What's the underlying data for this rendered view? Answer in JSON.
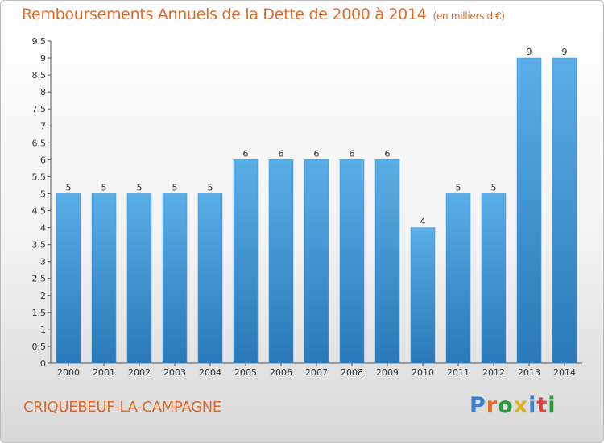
{
  "header": {
    "title": "Remboursements Annuels de la Dette de 2000 à 2014",
    "subtitle": "(en milliers d'€)"
  },
  "footer": {
    "commune": "CRIQUEBEUF-LA-CAMPAGNE",
    "logo_text": "Proxiti"
  },
  "colors": {
    "title": "#e06a2a",
    "bar_top": "#5aaee6",
    "bar_bottom": "#2a78b8",
    "logo_letters": [
      "#3a7fd0",
      "#e06a2a",
      "#2a9a3a",
      "#e0b020",
      "#3a7fd0",
      "#e04040",
      "#2a9a3a"
    ]
  },
  "chart_data": {
    "type": "bar",
    "title": "Remboursements Annuels de la Dette de 2000 à 2014",
    "subtitle": "(en milliers d'€)",
    "xlabel": "",
    "ylabel": "",
    "categories": [
      "2000",
      "2001",
      "2002",
      "2003",
      "2004",
      "2005",
      "2006",
      "2007",
      "2008",
      "2009",
      "2010",
      "2011",
      "2012",
      "2013",
      "2014"
    ],
    "values": [
      5,
      5,
      5,
      5,
      5,
      6,
      6,
      6,
      6,
      6,
      4,
      5,
      5,
      9,
      9
    ],
    "ylim": [
      0,
      9.5
    ],
    "yticks": [
      0,
      0.5,
      1,
      1.5,
      2,
      2.5,
      3,
      3.5,
      4,
      4.5,
      5,
      5.5,
      6,
      6.5,
      7,
      7.5,
      8,
      8.5,
      9,
      9.5
    ],
    "ytick_labels": [
      "0",
      "0.5",
      "1",
      "1.5",
      "2",
      "2.5",
      "3",
      "3.5",
      "4",
      "4.5",
      "5",
      "5.5",
      "6",
      "6.5",
      "7",
      "7.5",
      "8",
      "8.5",
      "9",
      "9.5"
    ],
    "grid": false,
    "legend": "none"
  }
}
